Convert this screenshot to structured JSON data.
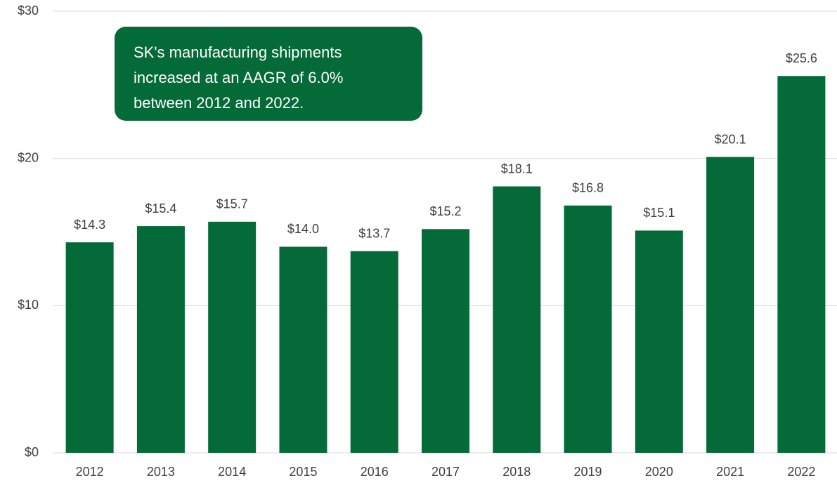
{
  "chart_data": {
    "type": "bar",
    "categories": [
      "2012",
      "2013",
      "2014",
      "2015",
      "2016",
      "2017",
      "2018",
      "2019",
      "2020",
      "2021",
      "2022"
    ],
    "values": [
      14.3,
      15.4,
      15.7,
      14.0,
      13.7,
      15.2,
      18.1,
      16.8,
      15.1,
      20.1,
      25.6
    ],
    "value_labels": [
      "$14.3",
      "$15.4",
      "$15.7",
      "$14.0",
      "$13.7",
      "$15.2",
      "$18.1",
      "$16.8",
      "$15.1",
      "$20.1",
      "$25.6"
    ],
    "color": "#046a38",
    "ylim": [
      0,
      30
    ],
    "yticks": [
      {
        "value": 0,
        "label": "$0"
      },
      {
        "value": 10,
        "label": "$10"
      },
      {
        "value": 20,
        "label": "$20"
      },
      {
        "value": 30,
        "label": "$30"
      }
    ],
    "grid": true,
    "annotation": [
      "SK's manufacturing shipments",
      "increased at an AAGR of 6.0%",
      "between 2012 and 2022."
    ]
  }
}
